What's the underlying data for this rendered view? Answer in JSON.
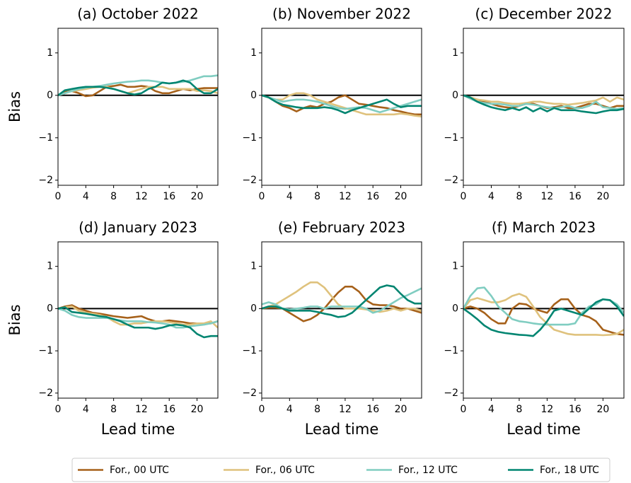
{
  "chart_data": [
    {
      "type": "line",
      "title": "(a) October 2022",
      "ylabel": "Bias",
      "x": [
        0,
        1,
        2,
        3,
        4,
        5,
        6,
        7,
        8,
        9,
        10,
        11,
        12,
        13,
        14,
        15,
        16,
        17,
        18,
        19,
        20,
        21,
        22,
        23
      ],
      "xlim": [
        0,
        23
      ],
      "xticks": [
        0,
        4,
        8,
        12,
        16,
        20
      ],
      "ylim": [
        -2.12,
        1.58
      ],
      "yticks": [
        {
          "value": -2,
          "label": "−2"
        },
        {
          "value": -1,
          "label": "−1"
        },
        0,
        1
      ],
      "hline": 0,
      "series": [
        {
          "name": "For., 00 UTC",
          "color": "#a6611a",
          "values": [
            0,
            0.08,
            0.1,
            0.05,
            -0.02,
            0,
            0.1,
            0.2,
            0.22,
            0.25,
            0.2,
            0.2,
            0.22,
            0.2,
            0.1,
            0.05,
            0.05,
            0.1,
            0.15,
            0.12,
            0.15,
            0.17,
            0.17,
            0.17
          ]
        },
        {
          "name": "For., 06 UTC",
          "color": "#dfc27d",
          "values": [
            0,
            0.05,
            0.1,
            0.12,
            0.15,
            0.18,
            0.2,
            0.2,
            0.15,
            0.1,
            0.05,
            0.1,
            0.15,
            0.2,
            0.2,
            0.2,
            0.15,
            0.15,
            0.15,
            0.15,
            0.1,
            0.12,
            0.1,
            0.05
          ]
        },
        {
          "name": "For., 12 UTC",
          "color": "#80cdc1",
          "values": [
            0,
            0.05,
            0.1,
            0.15,
            0.18,
            0.2,
            0.22,
            0.25,
            0.28,
            0.3,
            0.32,
            0.33,
            0.35,
            0.35,
            0.33,
            0.3,
            0.28,
            0.3,
            0.32,
            0.35,
            0.4,
            0.45,
            0.45,
            0.47
          ]
        },
        {
          "name": "For., 18 UTC",
          "color": "#018571",
          "values": [
            0,
            0.12,
            0.15,
            0.18,
            0.2,
            0.2,
            0.2,
            0.18,
            0.15,
            0.1,
            0.05,
            0.02,
            0.05,
            0.15,
            0.2,
            0.3,
            0.28,
            0.3,
            0.35,
            0.3,
            0.15,
            0.05,
            0.05,
            0.15
          ]
        }
      ]
    },
    {
      "type": "line",
      "title": "(b) November 2022",
      "x": [
        0,
        1,
        2,
        3,
        4,
        5,
        6,
        7,
        8,
        9,
        10,
        11,
        12,
        13,
        14,
        15,
        16,
        17,
        18,
        19,
        20,
        21,
        22,
        23
      ],
      "xlim": [
        0,
        23
      ],
      "xticks": [
        0,
        4,
        8,
        12,
        16,
        20
      ],
      "ylim": [
        -2.12,
        1.58
      ],
      "yticks": [
        {
          "value": -2,
          "label": "−2"
        },
        {
          "value": -1,
          "label": "−1"
        },
        0,
        1
      ],
      "hline": 0,
      "series": [
        {
          "color": "#a6611a",
          "values": [
            0,
            -0.05,
            -0.15,
            -0.25,
            -0.3,
            -0.38,
            -0.3,
            -0.25,
            -0.28,
            -0.2,
            -0.15,
            -0.05,
            0,
            -0.1,
            -0.2,
            -0.22,
            -0.25,
            -0.28,
            -0.3,
            -0.35,
            -0.38,
            -0.42,
            -0.45,
            -0.45
          ]
        },
        {
          "color": "#dfc27d",
          "values": [
            0,
            -0.05,
            -0.1,
            -0.1,
            0,
            0.05,
            0.05,
            0,
            -0.1,
            -0.15,
            -0.2,
            -0.25,
            -0.3,
            -0.35,
            -0.4,
            -0.45,
            -0.45,
            -0.45,
            -0.45,
            -0.45,
            -0.43,
            -0.45,
            -0.48,
            -0.5
          ]
        },
        {
          "color": "#80cdc1",
          "values": [
            0,
            -0.05,
            -0.1,
            -0.15,
            -0.12,
            -0.1,
            -0.1,
            -0.12,
            -0.15,
            -0.2,
            -0.25,
            -0.3,
            -0.32,
            -0.3,
            -0.28,
            -0.3,
            -0.35,
            -0.4,
            -0.35,
            -0.3,
            -0.25,
            -0.2,
            -0.15,
            -0.1
          ]
        },
        {
          "color": "#018571",
          "values": [
            0,
            -0.05,
            -0.15,
            -0.22,
            -0.25,
            -0.28,
            -0.3,
            -0.3,
            -0.3,
            -0.28,
            -0.3,
            -0.35,
            -0.42,
            -0.35,
            -0.3,
            -0.25,
            -0.2,
            -0.15,
            -0.1,
            -0.2,
            -0.28,
            -0.25,
            -0.25,
            -0.25
          ]
        }
      ]
    },
    {
      "type": "line",
      "title": "(c) December 2022",
      "x": [
        0,
        1,
        2,
        3,
        4,
        5,
        6,
        7,
        8,
        9,
        10,
        11,
        12,
        13,
        14,
        15,
        16,
        17,
        18,
        19,
        20,
        21,
        22,
        23
      ],
      "xlim": [
        0,
        23
      ],
      "xticks": [
        0,
        4,
        8,
        12,
        16,
        20
      ],
      "ylim": [
        -2.12,
        1.58
      ],
      "yticks": [
        {
          "value": -2,
          "label": "−2"
        },
        {
          "value": -1,
          "label": "−1"
        },
        0,
        1
      ],
      "hline": 0,
      "series": [
        {
          "color": "#a6611a",
          "values": [
            0,
            -0.05,
            -0.1,
            -0.15,
            -0.2,
            -0.25,
            -0.28,
            -0.3,
            -0.25,
            -0.2,
            -0.2,
            -0.25,
            -0.3,
            -0.28,
            -0.25,
            -0.3,
            -0.3,
            -0.25,
            -0.2,
            -0.2,
            -0.25,
            -0.3,
            -0.25,
            -0.25
          ]
        },
        {
          "color": "#dfc27d",
          "values": [
            0,
            -0.05,
            -0.1,
            -0.12,
            -0.15,
            -0.15,
            -0.18,
            -0.2,
            -0.2,
            -0.18,
            -0.15,
            -0.15,
            -0.18,
            -0.2,
            -0.2,
            -0.22,
            -0.2,
            -0.18,
            -0.15,
            -0.12,
            -0.05,
            -0.15,
            -0.05,
            -0.1
          ]
        },
        {
          "color": "#80cdc1",
          "values": [
            0,
            -0.08,
            -0.15,
            -0.18,
            -0.2,
            -0.2,
            -0.22,
            -0.25,
            -0.25,
            -0.2,
            -0.22,
            -0.25,
            -0.28,
            -0.3,
            -0.28,
            -0.25,
            -0.3,
            -0.3,
            -0.25,
            -0.15,
            -0.28,
            -0.3,
            -0.32,
            -0.3
          ]
        },
        {
          "color": "#018571",
          "values": [
            0,
            -0.05,
            -0.15,
            -0.22,
            -0.28,
            -0.32,
            -0.35,
            -0.3,
            -0.35,
            -0.28,
            -0.38,
            -0.3,
            -0.38,
            -0.3,
            -0.35,
            -0.35,
            -0.35,
            -0.38,
            -0.4,
            -0.42,
            -0.38,
            -0.35,
            -0.35,
            -0.32
          ]
        }
      ]
    },
    {
      "type": "line",
      "title": "(d) January 2023",
      "ylabel": "Bias",
      "xlabel": "Lead time",
      "x": [
        0,
        1,
        2,
        3,
        4,
        5,
        6,
        7,
        8,
        9,
        10,
        11,
        12,
        13,
        14,
        15,
        16,
        17,
        18,
        19,
        20,
        21,
        22,
        23
      ],
      "xlim": [
        0,
        23
      ],
      "xticks": [
        0,
        4,
        8,
        12,
        16,
        20
      ],
      "ylim": [
        -2.12,
        1.58
      ],
      "yticks": [
        {
          "value": -2,
          "label": "−2"
        },
        {
          "value": -1,
          "label": "−1"
        },
        0,
        1
      ],
      "hline": 0,
      "series": [
        {
          "color": "#a6611a",
          "values": [
            0,
            0.05,
            0.08,
            0,
            -0.05,
            -0.1,
            -0.12,
            -0.15,
            -0.18,
            -0.2,
            -0.22,
            -0.2,
            -0.18,
            -0.25,
            -0.3,
            -0.3,
            -0.28,
            -0.3,
            -0.32,
            -0.35,
            -0.35,
            -0.35,
            -0.35,
            -0.3
          ]
        },
        {
          "color": "#dfc27d",
          "values": [
            0,
            0.03,
            0.05,
            -0.05,
            -0.1,
            -0.12,
            -0.15,
            -0.2,
            -0.3,
            -0.38,
            -0.38,
            -0.35,
            -0.35,
            -0.32,
            -0.3,
            -0.3,
            -0.32,
            -0.35,
            -0.38,
            -0.38,
            -0.35,
            -0.35,
            -0.3,
            -0.45
          ]
        },
        {
          "color": "#80cdc1",
          "values": [
            0,
            -0.05,
            -0.15,
            -0.2,
            -0.22,
            -0.22,
            -0.22,
            -0.22,
            -0.25,
            -0.28,
            -0.3,
            -0.3,
            -0.3,
            -0.32,
            -0.33,
            -0.35,
            -0.38,
            -0.45,
            -0.45,
            -0.42,
            -0.4,
            -0.38,
            -0.35,
            -0.3
          ]
        },
        {
          "color": "#018571",
          "values": [
            0,
            0.03,
            -0.08,
            -0.1,
            -0.12,
            -0.15,
            -0.18,
            -0.2,
            -0.25,
            -0.3,
            -0.38,
            -0.45,
            -0.45,
            -0.45,
            -0.48,
            -0.45,
            -0.4,
            -0.38,
            -0.4,
            -0.45,
            -0.6,
            -0.68,
            -0.65,
            -0.65
          ]
        }
      ]
    },
    {
      "type": "line",
      "title": "(e) February 2023",
      "xlabel": "Lead time",
      "x": [
        0,
        1,
        2,
        3,
        4,
        5,
        6,
        7,
        8,
        9,
        10,
        11,
        12,
        13,
        14,
        15,
        16,
        17,
        18,
        19,
        20,
        21,
        22,
        23
      ],
      "xlim": [
        0,
        23
      ],
      "xticks": [
        0,
        4,
        8,
        12,
        16,
        20
      ],
      "ylim": [
        -2.12,
        1.58
      ],
      "yticks": [
        {
          "value": -2,
          "label": "−2"
        },
        {
          "value": -1,
          "label": "−1"
        },
        0,
        1
      ],
      "hline": 0,
      "series": [
        {
          "color": "#a6611a",
          "values": [
            0,
            0.02,
            0.02,
            0,
            -0.1,
            -0.2,
            -0.3,
            -0.25,
            -0.15,
            0,
            0.2,
            0.38,
            0.52,
            0.52,
            0.4,
            0.2,
            0.1,
            0.08,
            0.08,
            0.05,
            0,
            0,
            -0.05,
            -0.1
          ]
        },
        {
          "color": "#dfc27d",
          "values": [
            0,
            0.05,
            0.1,
            0.2,
            0.3,
            0.4,
            0.52,
            0.62,
            0.62,
            0.5,
            0.3,
            0.1,
            0,
            0,
            0,
            -0.02,
            -0.05,
            -0.08,
            -0.05,
            0,
            -0.05,
            0,
            0,
            -0.05
          ]
        },
        {
          "color": "#80cdc1",
          "values": [
            0.1,
            0.15,
            0.1,
            0,
            -0.02,
            0,
            0.02,
            0.05,
            0.05,
            0,
            0.05,
            0.05,
            0.05,
            0.05,
            0.05,
            0,
            -0.1,
            -0.05,
            0.05,
            0.15,
            0.25,
            0.32,
            0.4,
            0.48
          ]
        },
        {
          "color": "#018571",
          "values": [
            0,
            0.05,
            0.05,
            0,
            -0.05,
            -0.05,
            -0.05,
            -0.05,
            -0.08,
            -0.12,
            -0.15,
            -0.2,
            -0.18,
            -0.1,
            0.05,
            0.2,
            0.35,
            0.5,
            0.55,
            0.52,
            0.35,
            0.2,
            0.12,
            0.12
          ]
        }
      ]
    },
    {
      "type": "line",
      "title": "(f) March 2023",
      "xlabel": "Lead time",
      "x": [
        0,
        1,
        2,
        3,
        4,
        5,
        6,
        7,
        8,
        9,
        10,
        11,
        12,
        13,
        14,
        15,
        16,
        17,
        18,
        19,
        20,
        21,
        22,
        23
      ],
      "xlim": [
        0,
        23
      ],
      "xticks": [
        0,
        4,
        8,
        12,
        16,
        20
      ],
      "ylim": [
        -2.12,
        1.58
      ],
      "yticks": [
        {
          "value": -2,
          "label": "−2"
        },
        {
          "value": -1,
          "label": "−1"
        },
        0,
        1
      ],
      "hline": 0,
      "series": [
        {
          "color": "#a6611a",
          "values": [
            0,
            0.05,
            0,
            -0.1,
            -0.25,
            -0.35,
            -0.35,
            0,
            0.12,
            0.1,
            0,
            -0.05,
            -0.1,
            0.1,
            0.22,
            0.22,
            0,
            -0.15,
            -0.2,
            -0.3,
            -0.5,
            -0.55,
            -0.6,
            -0.62
          ]
        },
        {
          "color": "#dfc27d",
          "values": [
            0,
            0.2,
            0.25,
            0.2,
            0.15,
            0.15,
            0.2,
            0.3,
            0.35,
            0.28,
            0.05,
            -0.2,
            -0.35,
            -0.5,
            -0.55,
            -0.6,
            -0.62,
            -0.62,
            -0.62,
            -0.62,
            -0.63,
            -0.62,
            -0.6,
            -0.5
          ]
        },
        {
          "color": "#80cdc1",
          "values": [
            0,
            0.3,
            0.48,
            0.5,
            0.3,
            0.05,
            -0.1,
            -0.25,
            -0.3,
            -0.32,
            -0.35,
            -0.37,
            -0.38,
            -0.38,
            -0.38,
            -0.38,
            -0.35,
            -0.1,
            0.05,
            0.1,
            0.22,
            0.2,
            0.1,
            -0.1
          ]
        },
        {
          "color": "#018571",
          "values": [
            0,
            -0.12,
            -0.25,
            -0.4,
            -0.5,
            -0.55,
            -0.58,
            -0.6,
            -0.62,
            -0.63,
            -0.65,
            -0.5,
            -0.3,
            -0.05,
            0,
            -0.05,
            -0.1,
            -0.15,
            0,
            0.15,
            0.22,
            0.2,
            0.05,
            -0.18
          ]
        }
      ]
    }
  ]
}
